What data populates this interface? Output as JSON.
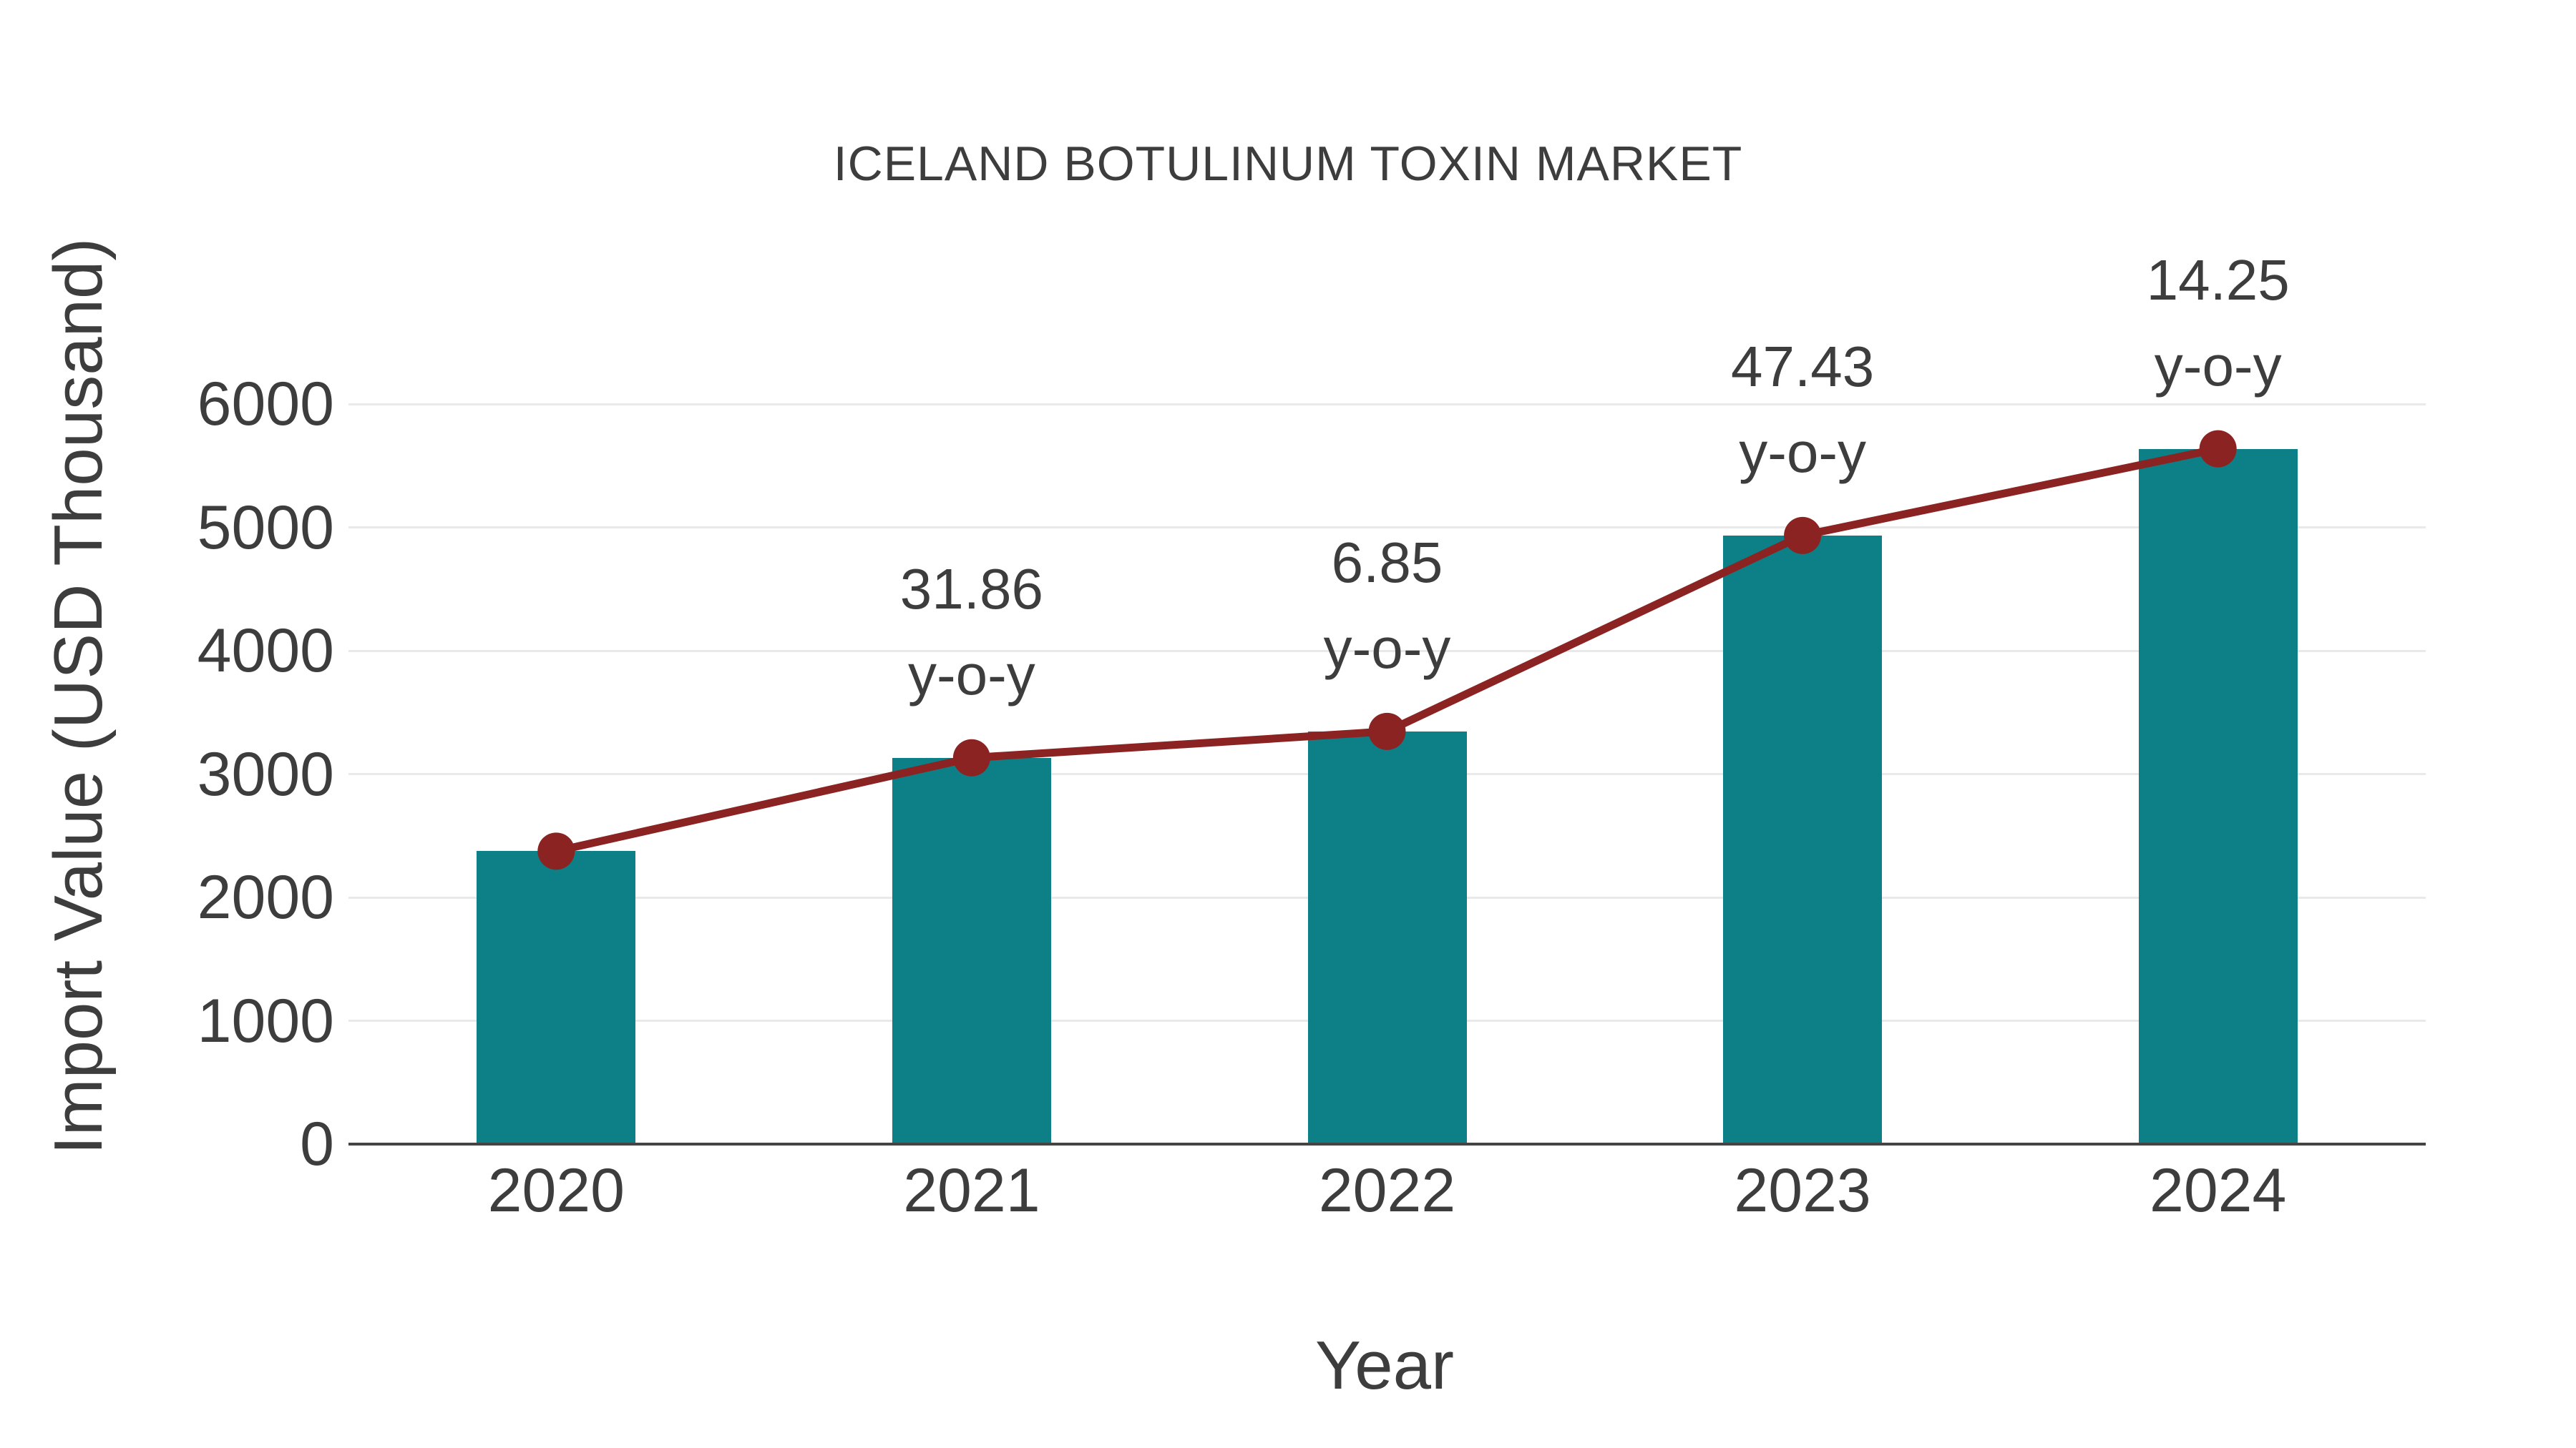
{
  "chart_data": {
    "type": "bar+line",
    "title": "ICELAND BOTULINUM TOXIN MARKET",
    "xlabel": "Year",
    "ylabel": "Import Value (USD Thousand)",
    "categories": [
      "2020",
      "2021",
      "2022",
      "2023",
      "2024"
    ],
    "series": [
      {
        "name": "Import Value bars",
        "type": "bar",
        "values": [
          2375,
          3132,
          3346,
          4934,
          5637
        ]
      },
      {
        "name": "Import Value trend line",
        "type": "line",
        "values": [
          2375,
          3132,
          3346,
          4934,
          5637
        ]
      }
    ],
    "annotations": [
      {
        "category": "2021",
        "value": "31.86",
        "suffix": "y-o-y"
      },
      {
        "category": "2022",
        "value": "6.85",
        "suffix": "y-o-y"
      },
      {
        "category": "2023",
        "value": "47.43",
        "suffix": "y-o-y"
      },
      {
        "category": "2024",
        "value": "14.25",
        "suffix": "y-o-y"
      }
    ],
    "ylim": [
      0,
      6000
    ],
    "ytick_step": 1000,
    "yticks": [
      0,
      1000,
      2000,
      3000,
      4000,
      5000,
      6000
    ],
    "grid": true,
    "legend": "none",
    "colors": {
      "bar": "#0C8086",
      "line": "#8B2322",
      "text": "#3D3D3D",
      "grid": "#E9E9E9",
      "axis": "#444444",
      "background": "#FFFFFF"
    }
  }
}
